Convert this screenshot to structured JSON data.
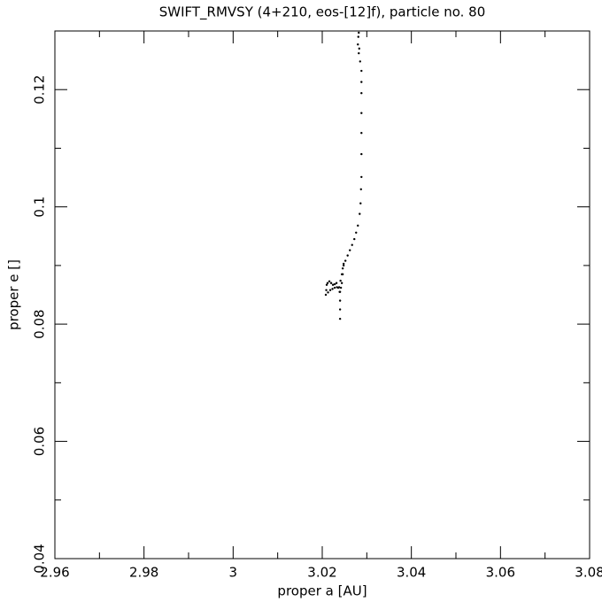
{
  "chart_data": {
    "type": "scatter",
    "title": "SWIFT_RMVSY (4+210, eos-[12]f), particle no. 80",
    "x_label": "proper a [AU]",
    "y_label": "proper e []",
    "xlim": [
      2.96,
      3.08
    ],
    "ylim": [
      0.04,
      0.13
    ],
    "xticks": [
      2.96,
      2.98,
      3,
      3.02,
      3.04,
      3.06,
      3.08
    ],
    "yticks": [
      0.04,
      0.06,
      0.08,
      0.1,
      0.12
    ],
    "xminor": [
      2.97,
      2.99,
      3.01,
      3.03,
      3.05,
      3.07
    ],
    "yminor": [
      0.05,
      0.07,
      0.09,
      0.11
    ],
    "color": "#000000",
    "x": [
      3.0282,
      3.0281,
      3.028,
      3.0283,
      3.0282,
      3.0285,
      3.0288,
      3.0288,
      3.0288,
      3.0288,
      3.0288,
      3.0288,
      3.0288,
      3.0287,
      3.0286,
      3.0284,
      3.028,
      3.0276,
      3.0272,
      3.0267,
      3.0262,
      3.0257,
      3.0252,
      3.0248,
      3.0246,
      3.0244,
      3.0242,
      3.024,
      3.024,
      3.024,
      3.024,
      3.0239,
      3.0236,
      3.0232,
      3.0228,
      3.0224,
      3.022,
      3.0216,
      3.0212,
      3.021,
      3.0209,
      3.0208,
      3.0213,
      3.0218,
      3.0223,
      3.0228,
      3.0233,
      3.0238,
      3.0241,
      3.0244,
      3.0246,
      3.0248
    ],
    "values": [
      0.1297,
      0.129,
      0.1277,
      0.127,
      0.1262,
      0.1248,
      0.1232,
      0.1213,
      0.1194,
      0.116,
      0.1126,
      0.109,
      0.1051,
      0.103,
      0.1006,
      0.0988,
      0.0968,
      0.0956,
      0.0945,
      0.0935,
      0.0926,
      0.0917,
      0.0908,
      0.09,
      0.0885,
      0.087,
      0.0862,
      0.0855,
      0.084,
      0.0825,
      0.0809,
      0.0855,
      0.0862,
      0.087,
      0.0868,
      0.0867,
      0.087,
      0.0873,
      0.087,
      0.0867,
      0.0858,
      0.085,
      0.0854,
      0.0858,
      0.086,
      0.0862,
      0.0863,
      0.0863,
      0.0874,
      0.0885,
      0.0895,
      0.0903
    ]
  }
}
